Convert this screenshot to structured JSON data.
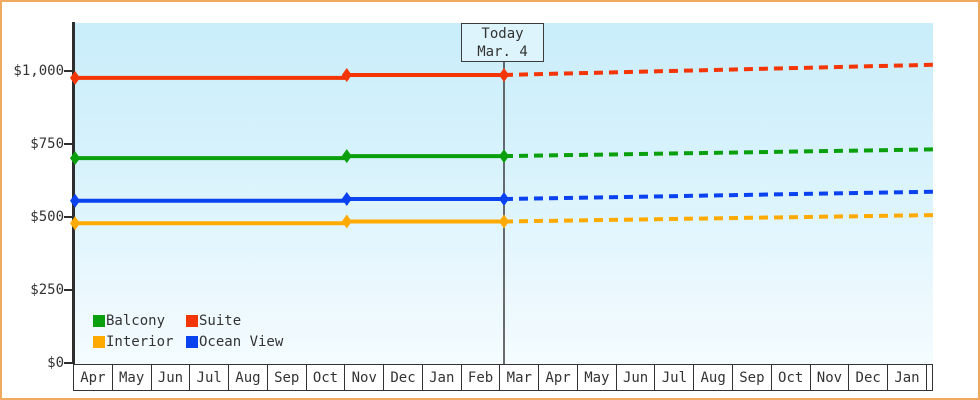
{
  "frame": {
    "border_color": "#efa960",
    "background": "#ffffff"
  },
  "today_box": {
    "line1": "Today",
    "line2": "Mar. 4"
  },
  "y_axis": {
    "ticks": [
      {
        "label": "$1,000",
        "value": 1000
      },
      {
        "label": "$750",
        "value": 750
      },
      {
        "label": "$500",
        "value": 500
      },
      {
        "label": "$250",
        "value": 250
      },
      {
        "label": "$0",
        "value": 0
      }
    ]
  },
  "x_axis": {
    "months": [
      "Apr",
      "May",
      "Jun",
      "Jul",
      "Aug",
      "Sep",
      "Oct",
      "Nov",
      "Dec",
      "Jan",
      "Feb",
      "Mar",
      "Apr",
      "May",
      "Jun",
      "Jul",
      "Aug",
      "Sep",
      "Oct",
      "Nov",
      "Dec",
      "Jan"
    ]
  },
  "legend": {
    "items": [
      {
        "label": "Balcony",
        "color": "#0aa00d"
      },
      {
        "label": "Suite",
        "color": "#f43505"
      },
      {
        "label": "Interior",
        "color": "#ffaa00"
      },
      {
        "label": "Ocean View",
        "color": "#0a42f0"
      }
    ]
  },
  "chart_data": {
    "type": "line",
    "title": "",
    "xlabel": "",
    "ylabel": "",
    "x_categories": [
      "Apr",
      "May",
      "Jun",
      "Jul",
      "Aug",
      "Sep",
      "Oct",
      "Nov",
      "Dec",
      "Jan",
      "Feb",
      "Mar",
      "Apr",
      "May",
      "Jun",
      "Jul",
      "Aug",
      "Sep",
      "Oct",
      "Nov",
      "Dec",
      "Jan"
    ],
    "xlim": [
      0,
      22.1
    ],
    "ylim": [
      0,
      1163
    ],
    "y_ticks": [
      0,
      250,
      500,
      750,
      1000
    ],
    "grid": false,
    "legend_position": "inside-bottom-left",
    "today": {
      "x": 11.05,
      "label": "Today",
      "date": "Mar. 4"
    },
    "line_style": {
      "solid_width": 4,
      "dash_pattern": "9 6",
      "marker": "diamond"
    },
    "series": [
      {
        "name": "Suite",
        "color": "#f43505",
        "solid": [
          [
            0,
            975
          ],
          [
            7,
            975
          ],
          [
            7,
            985
          ],
          [
            11.05,
            985
          ]
        ],
        "dashed": [
          [
            11.05,
            985
          ],
          [
            22.1,
            1020
          ]
        ],
        "markers": [
          [
            0,
            975
          ],
          [
            7,
            985
          ],
          [
            11.05,
            985
          ]
        ]
      },
      {
        "name": "Balcony",
        "color": "#0aa00d",
        "solid": [
          [
            0,
            700
          ],
          [
            7,
            700
          ],
          [
            7,
            707
          ],
          [
            11.05,
            707
          ]
        ],
        "dashed": [
          [
            11.05,
            707
          ],
          [
            22.1,
            730
          ]
        ],
        "markers": [
          [
            0,
            700
          ],
          [
            7,
            707
          ],
          [
            11.05,
            707
          ]
        ]
      },
      {
        "name": "Ocean View",
        "color": "#0a42f0",
        "solid": [
          [
            0,
            554
          ],
          [
            7,
            554
          ],
          [
            7,
            560
          ],
          [
            11.05,
            560
          ]
        ],
        "dashed": [
          [
            11.05,
            560
          ],
          [
            22.1,
            585
          ]
        ],
        "markers": [
          [
            0,
            554
          ],
          [
            7,
            560
          ],
          [
            11.05,
            560
          ]
        ]
      },
      {
        "name": "Interior",
        "color": "#ffaa00",
        "solid": [
          [
            0,
            477
          ],
          [
            7,
            477
          ],
          [
            7,
            483
          ],
          [
            11.05,
            483
          ]
        ],
        "dashed": [
          [
            11.05,
            483
          ],
          [
            22.1,
            505
          ]
        ],
        "markers": [
          [
            0,
            477
          ],
          [
            7,
            483
          ],
          [
            11.05,
            483
          ]
        ]
      }
    ]
  }
}
